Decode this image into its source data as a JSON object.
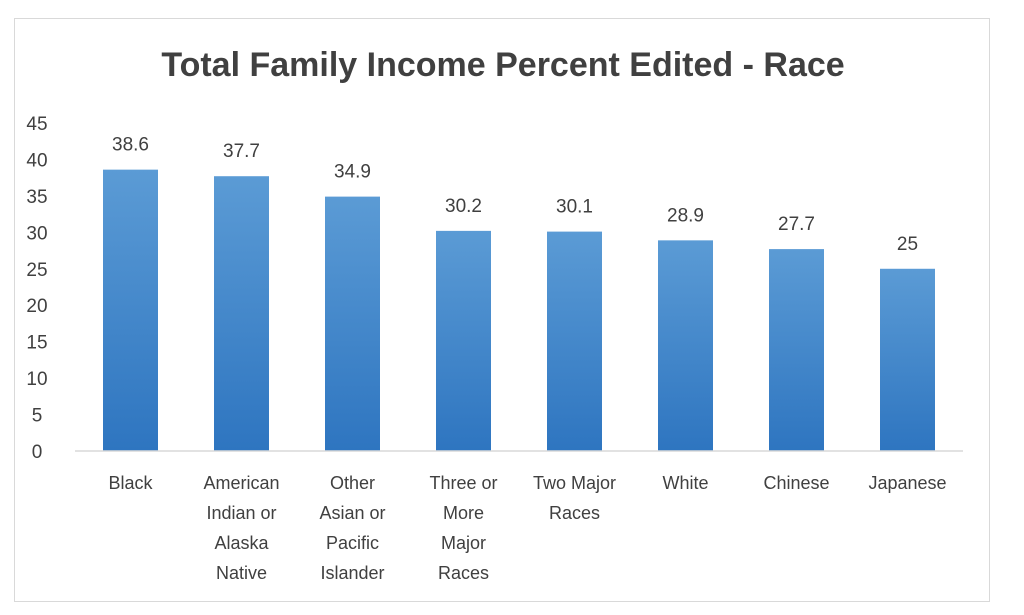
{
  "chart_data": {
    "type": "bar",
    "title": "Total Family Income Percent Edited - Race",
    "xlabel": "",
    "ylabel": "",
    "categories": [
      [
        "Black"
      ],
      [
        "American",
        "Indian or",
        "Alaska",
        "Native"
      ],
      [
        "Other",
        "Asian or",
        "Pacific",
        "Islander"
      ],
      [
        "Three or",
        "More",
        "Major",
        "Races"
      ],
      [
        "Two Major",
        "Races"
      ],
      [
        "White"
      ],
      [
        "Chinese"
      ],
      [
        "Japanese"
      ]
    ],
    "values": [
      38.6,
      37.7,
      34.9,
      30.2,
      30.1,
      28.9,
      27.7,
      25
    ],
    "value_labels": [
      "38.6",
      "37.7",
      "34.9",
      "30.2",
      "30.1",
      "28.9",
      "27.7",
      "25"
    ],
    "ylim": [
      0,
      45
    ],
    "yticks": [
      0,
      5,
      10,
      15,
      20,
      25,
      30,
      35,
      40,
      45
    ],
    "grid": false,
    "legend": "none",
    "bar_color_top": "#5b9bd5",
    "bar_color_bottom": "#2e75c0",
    "axis_color": "#d9d9d9",
    "text_color": "#404040"
  }
}
